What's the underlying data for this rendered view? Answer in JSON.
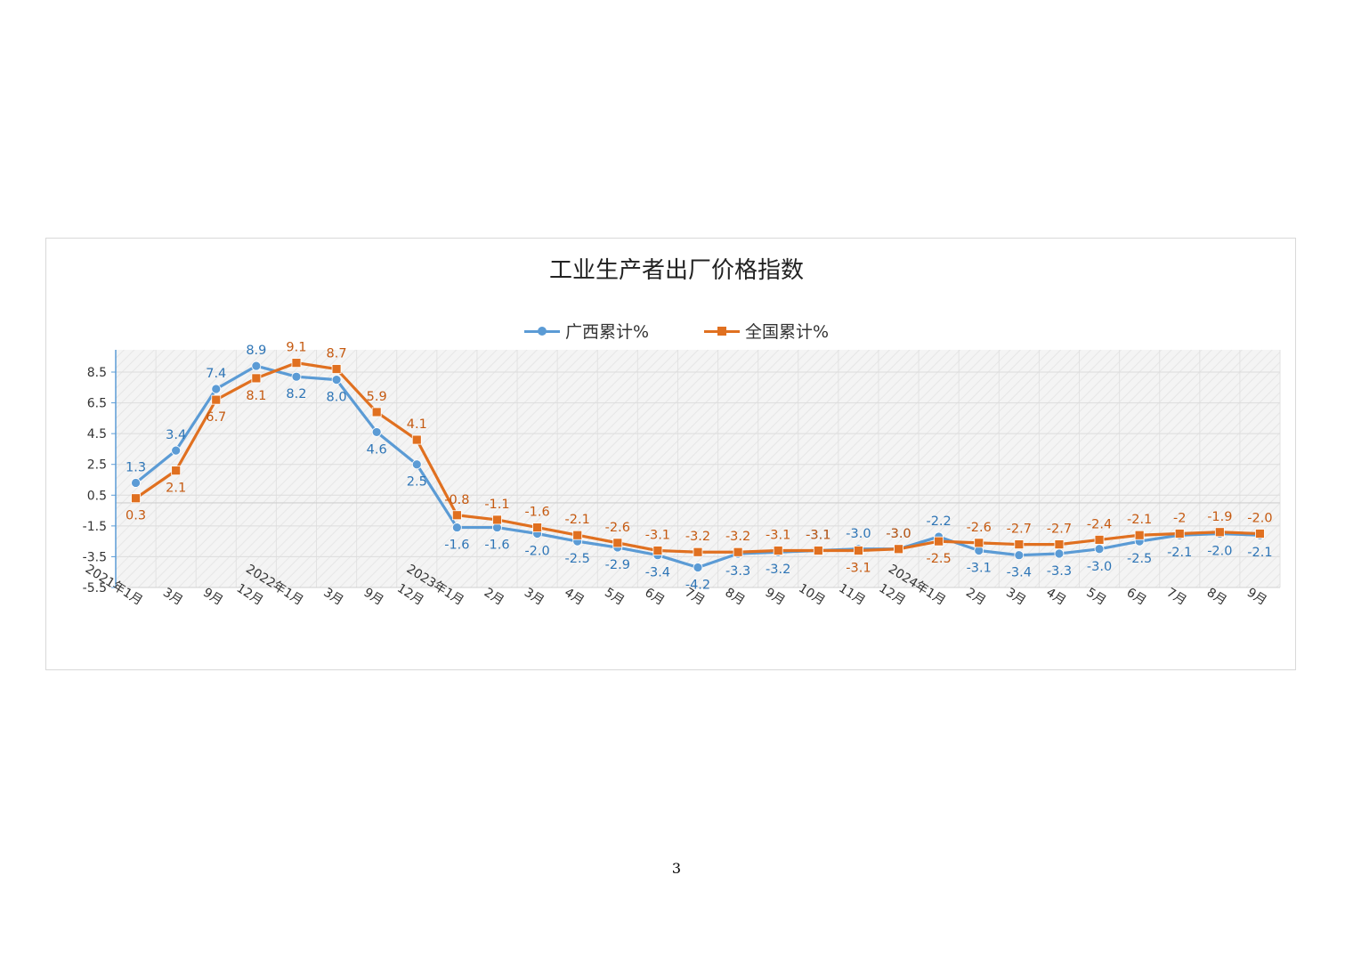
{
  "title": "工业生产者出厂价格指数",
  "page_number": "3",
  "colors": {
    "guangxi": "#5b9bd5",
    "national": "#e07020",
    "guangxi_label": "#2e75b6",
    "national_label": "#c55a11",
    "axis": "#5b9bd5"
  },
  "legend": [
    {
      "label": "广西累计%",
      "marker": "circle",
      "color": "#5b9bd5"
    },
    {
      "label": "全国累计%",
      "marker": "square",
      "color": "#e07020"
    }
  ],
  "chart_data": {
    "type": "line",
    "title": "工业生产者出厂价格指数",
    "ylim": [
      -5.5,
      9.5
    ],
    "y_ticks": [
      8.5,
      6.5,
      4.5,
      2.5,
      0.5,
      -1.5,
      -3.5,
      -5.5
    ],
    "y_tick_labels": [
      "8.5",
      "6.5",
      "4.5",
      "2.5",
      "0.5",
      "-1.5",
      "-3.5",
      "-5.5"
    ],
    "grid": true,
    "legend_position": "top-center",
    "categories": [
      "2021年1月",
      "3月",
      "9月",
      "12月",
      "2022年1月",
      "3月",
      "9月",
      "12月",
      "2023年1月",
      "2月",
      "3月",
      "4月",
      "5月",
      "6月",
      "7月",
      "8月",
      "9月",
      "10月",
      "11月",
      "12月",
      "2024年1月",
      "2月",
      "3月",
      "4月",
      "5月",
      "6月",
      "7月",
      "8月",
      "9月"
    ],
    "series": [
      {
        "name": "广西累计%",
        "values": [
          1.3,
          3.4,
          7.4,
          8.9,
          8.2,
          8.0,
          4.6,
          2.5,
          -1.6,
          -1.6,
          -2.0,
          -2.5,
          -2.9,
          -3.4,
          -4.2,
          -3.3,
          -3.2,
          -3.1,
          -3.0,
          -3.0,
          -2.2,
          -3.1,
          -3.4,
          -3.3,
          -3.0,
          -2.5,
          -2.1,
          -2.0,
          -2.1
        ],
        "labels": [
          "1.3",
          "3.4",
          "7.4",
          "8.9",
          "8.2",
          "8.0",
          "4.6",
          "2.5",
          "-1.6",
          "-1.6",
          "-2.0",
          "-2.5",
          "-2.9",
          "-3.4",
          "-4.2",
          "-3.3",
          "-3.2",
          "-3.1",
          "-3.0",
          "-3.0",
          "-2.2",
          "-3.1",
          "-3.4",
          "-3.3",
          "-3.0",
          "-2.5",
          "-2.1",
          "-2.0",
          "-2.1"
        ]
      },
      {
        "name": "全国累计%",
        "values": [
          0.3,
          2.1,
          6.7,
          8.1,
          9.1,
          8.7,
          5.9,
          4.1,
          -0.8,
          -1.1,
          -1.6,
          -2.1,
          -2.6,
          -3.1,
          -3.2,
          -3.2,
          -3.1,
          -3.1,
          -3.1,
          -3.0,
          -2.5,
          -2.6,
          -2.7,
          -2.7,
          -2.4,
          -2.1,
          -2.0,
          -1.9,
          -2.0
        ],
        "labels": [
          "0.3",
          "2.1",
          "6.7",
          "8.1",
          "9.1",
          "8.7",
          "5.9",
          "4.1",
          "-0.8",
          "-1.1",
          "-1.6",
          "-2.1",
          "-2.6",
          "-3.1",
          "-3.2",
          "-3.2",
          "-3.1",
          "-3.1",
          "-3.1",
          "-3.0",
          "-2.5",
          "-2.6",
          "-2.7",
          "-2.7",
          "-2.4",
          "-2.1",
          "-2",
          "-1.9",
          "-2.0"
        ]
      }
    ]
  }
}
